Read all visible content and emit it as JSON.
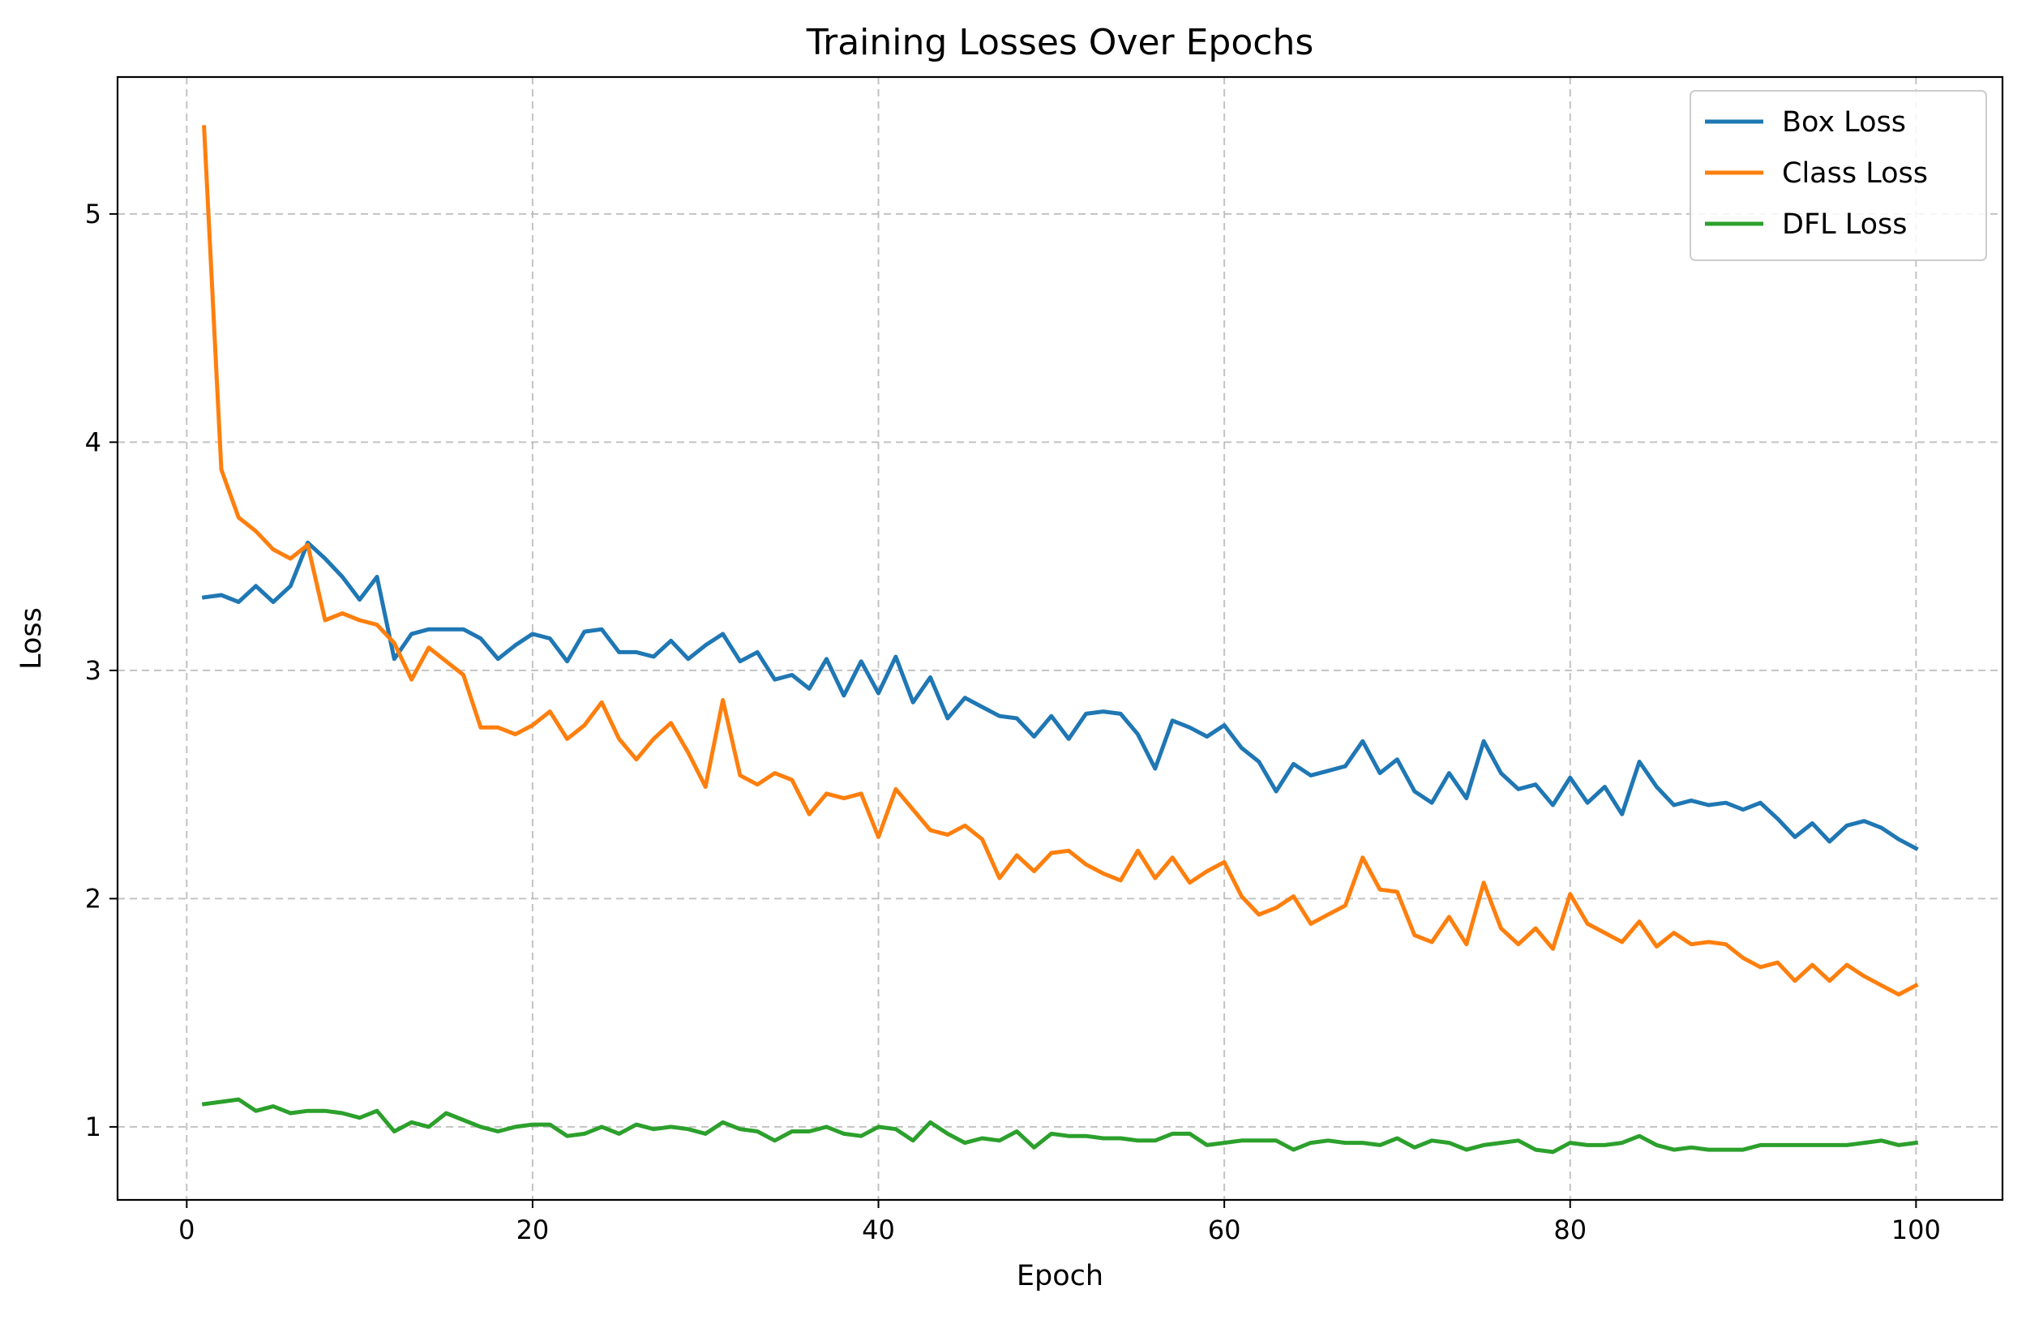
{
  "chart_data": {
    "type": "line",
    "title": "Training Losses Over Epochs",
    "xlabel": "Epoch",
    "ylabel": "Loss",
    "xlim": [
      -4,
      105
    ],
    "ylim": [
      0.68,
      5.6
    ],
    "xticks": [
      0,
      20,
      40,
      60,
      80,
      100
    ],
    "yticks": [
      1,
      2,
      3,
      4,
      5
    ],
    "grid": true,
    "legend_position": "top-right",
    "x_start": 1,
    "series": [
      {
        "name": "Box Loss",
        "color": "#1f77b4",
        "values": [
          3.32,
          3.33,
          3.3,
          3.37,
          3.3,
          3.37,
          3.56,
          3.49,
          3.41,
          3.31,
          3.41,
          3.05,
          3.16,
          3.18,
          3.18,
          3.18,
          3.14,
          3.05,
          3.11,
          3.16,
          3.14,
          3.04,
          3.17,
          3.18,
          3.08,
          3.08,
          3.06,
          3.13,
          3.05,
          3.11,
          3.16,
          3.04,
          3.08,
          2.96,
          2.98,
          2.92,
          3.05,
          2.89,
          3.04,
          2.9,
          3.06,
          2.86,
          2.97,
          2.79,
          2.88,
          2.84,
          2.8,
          2.79,
          2.71,
          2.8,
          2.7,
          2.81,
          2.82,
          2.81,
          2.72,
          2.57,
          2.78,
          2.75,
          2.71,
          2.76,
          2.66,
          2.6,
          2.47,
          2.59,
          2.54,
          2.56,
          2.58,
          2.69,
          2.55,
          2.61,
          2.47,
          2.42,
          2.55,
          2.44,
          2.69,
          2.55,
          2.48,
          2.5,
          2.41,
          2.53,
          2.42,
          2.49,
          2.37,
          2.6,
          2.49,
          2.41,
          2.43,
          2.41,
          2.42,
          2.39,
          2.42,
          2.35,
          2.27,
          2.33,
          2.25,
          2.32,
          2.34,
          2.31,
          2.26,
          2.22
        ]
      },
      {
        "name": "Class Loss",
        "color": "#ff7f0e",
        "values": [
          5.38,
          3.88,
          3.67,
          3.61,
          3.53,
          3.49,
          3.55,
          3.22,
          3.25,
          3.22,
          3.2,
          3.12,
          2.96,
          3.1,
          3.04,
          2.98,
          2.75,
          2.75,
          2.72,
          2.76,
          2.82,
          2.7,
          2.76,
          2.86,
          2.7,
          2.61,
          2.7,
          2.77,
          2.64,
          2.49,
          2.87,
          2.54,
          2.5,
          2.55,
          2.52,
          2.37,
          2.46,
          2.44,
          2.46,
          2.27,
          2.48,
          2.39,
          2.3,
          2.28,
          2.32,
          2.26,
          2.09,
          2.19,
          2.12,
          2.2,
          2.21,
          2.15,
          2.11,
          2.08,
          2.21,
          2.09,
          2.18,
          2.07,
          2.12,
          2.16,
          2.01,
          1.93,
          1.96,
          2.01,
          1.89,
          1.93,
          1.97,
          2.18,
          2.04,
          2.03,
          1.84,
          1.81,
          1.92,
          1.8,
          2.07,
          1.87,
          1.8,
          1.87,
          1.78,
          2.02,
          1.89,
          1.85,
          1.81,
          1.9,
          1.79,
          1.85,
          1.8,
          1.81,
          1.8,
          1.74,
          1.7,
          1.72,
          1.64,
          1.71,
          1.64,
          1.71,
          1.66,
          1.62,
          1.58,
          1.62
        ]
      },
      {
        "name": "DFL Loss",
        "color": "#2ca02c",
        "values": [
          1.1,
          1.11,
          1.12,
          1.07,
          1.09,
          1.06,
          1.07,
          1.07,
          1.06,
          1.04,
          1.07,
          0.98,
          1.02,
          1.0,
          1.06,
          1.03,
          1.0,
          0.98,
          1.0,
          1.01,
          1.01,
          0.96,
          0.97,
          1.0,
          0.97,
          1.01,
          0.99,
          1.0,
          0.99,
          0.97,
          1.02,
          0.99,
          0.98,
          0.94,
          0.98,
          0.98,
          1.0,
          0.97,
          0.96,
          1.0,
          0.99,
          0.94,
          1.02,
          0.97,
          0.93,
          0.95,
          0.94,
          0.98,
          0.91,
          0.97,
          0.96,
          0.96,
          0.95,
          0.95,
          0.94,
          0.94,
          0.97,
          0.97,
          0.92,
          0.93,
          0.94,
          0.94,
          0.94,
          0.9,
          0.93,
          0.94,
          0.93,
          0.93,
          0.92,
          0.95,
          0.91,
          0.94,
          0.93,
          0.9,
          0.92,
          0.93,
          0.94,
          0.9,
          0.89,
          0.93,
          0.92,
          0.92,
          0.93,
          0.96,
          0.92,
          0.9,
          0.91,
          0.9,
          0.9,
          0.9,
          0.92,
          0.92,
          0.92,
          0.92,
          0.92,
          0.92,
          0.93,
          0.94,
          0.92,
          0.93
        ]
      }
    ]
  }
}
